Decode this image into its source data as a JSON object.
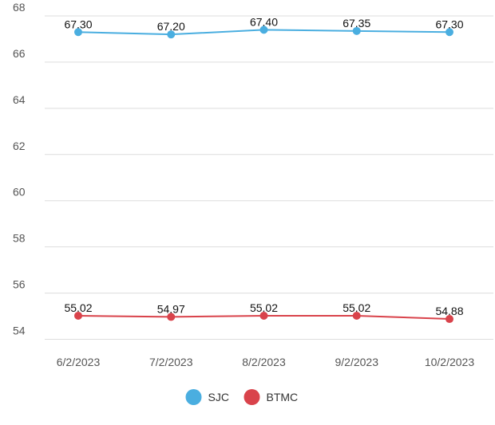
{
  "chart_data": {
    "type": "line",
    "title": "",
    "xlabel": "",
    "ylabel": "",
    "categories": [
      "6/2/2023",
      "7/2/2023",
      "8/2/2023",
      "9/2/2023",
      "10/2/2023"
    ],
    "ylim": [
      53.5,
      68
    ],
    "yticks": [
      54,
      56,
      58,
      60,
      62,
      64,
      66,
      68
    ],
    "grid": true,
    "legend_position": "bottom-center",
    "series": [
      {
        "name": "SJC",
        "color": "#4aaee0",
        "values": [
          67.3,
          67.2,
          67.4,
          67.35,
          67.3
        ],
        "labels": [
          "67.30",
          "67.20",
          "67.40",
          "67.35",
          "67.30"
        ]
      },
      {
        "name": "BTMC",
        "color": "#d9434b",
        "values": [
          55.02,
          54.97,
          55.02,
          55.02,
          54.88
        ],
        "labels": [
          "55.02",
          "54.97",
          "55.02",
          "55.02",
          "54.88"
        ]
      }
    ]
  }
}
